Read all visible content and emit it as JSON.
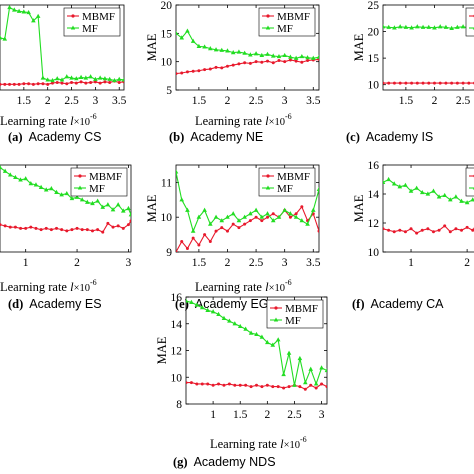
{
  "chart_data": [
    {
      "id": "a",
      "type": "line",
      "caption_letter": "(a)",
      "caption_text": "Academy CS",
      "xlabel": "Learning rate",
      "xunit_var": "l",
      "xunit_mult": "×10",
      "xunit_exp": "-6",
      "ylabel": "",
      "xlim": [
        1.0,
        3.6
      ],
      "ylim": [
        6.5,
        20
      ],
      "xticks": [
        1.5,
        2,
        2.5,
        3,
        3.5
      ],
      "xtick_labels": [
        "1.5",
        "2",
        "2.5",
        "3",
        "3.5"
      ],
      "yticks": [],
      "ytick_labels": [],
      "legend": [
        "MBMF",
        "MF"
      ],
      "legend_position": "top-right",
      "series": [
        {
          "name": "MBMF",
          "color": "#e8192c",
          "marker": "dot",
          "x": [
            1.0,
            1.1,
            1.2,
            1.3,
            1.4,
            1.5,
            1.6,
            1.7,
            1.8,
            1.9,
            2.0,
            2.1,
            2.2,
            2.3,
            2.4,
            2.5,
            2.6,
            2.7,
            2.8,
            2.9,
            3.0,
            3.1,
            3.2,
            3.3,
            3.4,
            3.5,
            3.6
          ],
          "y": [
            7.4,
            7.4,
            7.4,
            7.4,
            7.4,
            7.5,
            7.5,
            7.4,
            7.5,
            7.5,
            7.4,
            7.6,
            7.7,
            7.6,
            7.5,
            7.7,
            7.6,
            7.8,
            7.6,
            7.7,
            7.8,
            7.6,
            7.8,
            7.7,
            7.9,
            7.7,
            7.8
          ]
        },
        {
          "name": "MF",
          "color": "#22dd22",
          "marker": "tri",
          "x": [
            1.0,
            1.1,
            1.2,
            1.3,
            1.4,
            1.5,
            1.6,
            1.7,
            1.8,
            1.9,
            2.0,
            2.1,
            2.2,
            2.3,
            2.4,
            2.5,
            2.6,
            2.7,
            2.8,
            2.9,
            3.0,
            3.1,
            3.2,
            3.3,
            3.4,
            3.5,
            3.6
          ],
          "y": [
            14.8,
            14.6,
            19.6,
            19.2,
            19.0,
            18.9,
            18.8,
            17.5,
            18.2,
            8.4,
            8.1,
            8.0,
            8.3,
            8.1,
            8.6,
            8.4,
            8.3,
            8.5,
            8.4,
            8.6,
            8.2,
            8.4,
            8.3,
            8.2,
            8.0,
            8.2,
            8.1
          ]
        }
      ]
    },
    {
      "id": "b",
      "type": "line",
      "caption_letter": "(b)",
      "caption_text": "Academy NE",
      "xlabel": "Learning rate",
      "xunit_var": "l",
      "xunit_mult": "×10",
      "xunit_exp": "-6",
      "ylabel": "MAE",
      "xlim": [
        1.1,
        3.6
      ],
      "ylim": [
        5,
        20
      ],
      "xticks": [
        1.5,
        2,
        2.5,
        3,
        3.5
      ],
      "xtick_labels": [
        "1.5",
        "2",
        "2.5",
        "3",
        "3.5"
      ],
      "yticks": [
        5,
        10,
        15,
        20
      ],
      "ytick_labels": [
        "5",
        "10",
        "15",
        "20"
      ],
      "legend": [
        "MBMF",
        "MF"
      ],
      "legend_position": "top-right",
      "series": [
        {
          "name": "MBMF",
          "color": "#e8192c",
          "marker": "dot",
          "x": [
            1.1,
            1.2,
            1.3,
            1.4,
            1.5,
            1.6,
            1.7,
            1.8,
            1.9,
            2.0,
            2.1,
            2.2,
            2.3,
            2.4,
            2.5,
            2.6,
            2.7,
            2.8,
            2.9,
            3.0,
            3.1,
            3.2,
            3.3,
            3.4,
            3.5,
            3.6
          ],
          "y": [
            7.9,
            8.0,
            8.2,
            8.3,
            8.4,
            8.6,
            8.7,
            9.0,
            8.9,
            9.2,
            9.4,
            9.6,
            9.8,
            9.7,
            10.0,
            9.9,
            10.1,
            9.8,
            10.2,
            10.0,
            10.3,
            10.1,
            9.9,
            10.2,
            10.3,
            10.4
          ]
        },
        {
          "name": "MF",
          "color": "#22dd22",
          "marker": "tri",
          "x": [
            1.1,
            1.2,
            1.3,
            1.4,
            1.5,
            1.6,
            1.7,
            1.8,
            1.9,
            2.0,
            2.1,
            2.2,
            2.3,
            2.4,
            2.5,
            2.6,
            2.7,
            2.8,
            2.9,
            3.0,
            3.1,
            3.2,
            3.3,
            3.4,
            3.5,
            3.6
          ],
          "y": [
            15.0,
            14.2,
            15.4,
            13.6,
            12.7,
            12.6,
            12.3,
            12.1,
            12.0,
            11.9,
            11.6,
            11.7,
            11.5,
            11.2,
            11.4,
            11.1,
            11.3,
            11.0,
            10.9,
            11.1,
            10.8,
            10.6,
            10.9,
            10.7,
            10.6,
            10.8
          ]
        }
      ]
    },
    {
      "id": "c",
      "type": "line",
      "caption_letter": "(c)",
      "caption_text": "Academy IS",
      "xlabel": "",
      "xunit_var": "",
      "xunit_mult": "",
      "xunit_exp": "",
      "ylabel": "MAE",
      "xlim": [
        1.1,
        3.6
      ],
      "ylim": [
        9,
        25
      ],
      "xticks": [
        1.5,
        2,
        2.5
      ],
      "xtick_labels": [
        "1.5",
        "2",
        "2.5"
      ],
      "yticks": [
        10,
        15,
        20,
        25
      ],
      "ytick_labels": [
        "10",
        "15",
        "20",
        "25"
      ],
      "legend": [
        "MB",
        "M"
      ],
      "legend_position": "top-right",
      "series": [
        {
          "name": "MBMF",
          "color": "#e8192c",
          "marker": "dot",
          "x": [
            1.1,
            1.2,
            1.3,
            1.4,
            1.5,
            1.6,
            1.7,
            1.8,
            1.9,
            2.0,
            2.1,
            2.2,
            2.3,
            2.4,
            2.5,
            2.6,
            2.7,
            2.8,
            2.9,
            3.0
          ],
          "y": [
            10.3,
            10.3,
            10.3,
            10.3,
            10.3,
            10.3,
            10.3,
            10.3,
            10.3,
            10.3,
            10.3,
            10.3,
            10.3,
            10.3,
            10.3,
            10.3,
            10.3,
            10.3,
            10.3,
            10.3
          ]
        },
        {
          "name": "MF",
          "color": "#22dd22",
          "marker": "tri",
          "x": [
            1.1,
            1.2,
            1.3,
            1.4,
            1.5,
            1.6,
            1.7,
            1.8,
            1.9,
            2.0,
            2.1,
            2.2,
            2.3,
            2.4,
            2.5,
            2.6,
            2.7,
            2.8,
            2.9,
            3.0
          ],
          "y": [
            20.9,
            20.8,
            20.7,
            20.9,
            20.8,
            20.7,
            20.9,
            20.8,
            20.8,
            20.7,
            20.9,
            20.8,
            20.6,
            20.8,
            20.9,
            20.7,
            20.8,
            20.8,
            20.7,
            20.8
          ]
        }
      ]
    },
    {
      "id": "d",
      "type": "line",
      "caption_letter": "(d)",
      "caption_text": "Academy ES",
      "xlabel": "Learning rate",
      "xunit_var": "l",
      "xunit_mult": "×10",
      "xunit_exp": "-6",
      "ylabel": "",
      "xlim": [
        0.5,
        3.05
      ],
      "ylim": [
        9,
        16
      ],
      "xticks": [
        1,
        2,
        3
      ],
      "xtick_labels": [
        "1",
        "2",
        "3"
      ],
      "yticks": [],
      "ytick_labels": [],
      "legend": [
        "MBMF",
        "MF"
      ],
      "legend_position": "top-right",
      "series": [
        {
          "name": "MBMF",
          "color": "#e8192c",
          "marker": "dot",
          "x": [
            0.5,
            0.6,
            0.7,
            0.8,
            0.9,
            1.0,
            1.1,
            1.2,
            1.3,
            1.4,
            1.5,
            1.6,
            1.7,
            1.8,
            1.9,
            2.0,
            2.1,
            2.2,
            2.3,
            2.4,
            2.5,
            2.6,
            2.7,
            2.8,
            2.9,
            3.0,
            3.05
          ],
          "y": [
            11.2,
            11.1,
            11.0,
            11.0,
            10.9,
            10.9,
            11.0,
            10.9,
            10.8,
            10.9,
            10.8,
            10.9,
            10.8,
            10.7,
            10.8,
            10.9,
            10.8,
            10.8,
            10.7,
            10.8,
            10.6,
            11.3,
            11.0,
            11.1,
            10.9,
            11.2,
            11.5
          ]
        },
        {
          "name": "MF",
          "color": "#22dd22",
          "marker": "tri",
          "x": [
            0.5,
            0.6,
            0.7,
            0.8,
            0.9,
            1.0,
            1.1,
            1.2,
            1.3,
            1.4,
            1.5,
            1.6,
            1.7,
            1.8,
            1.9,
            2.0,
            2.1,
            2.2,
            2.3,
            2.4,
            2.5,
            2.6,
            2.7,
            2.8,
            2.9,
            3.0,
            3.05
          ],
          "y": [
            15.8,
            15.5,
            15.2,
            15.0,
            14.8,
            14.9,
            14.5,
            14.4,
            14.2,
            14.0,
            14.1,
            13.8,
            13.6,
            13.7,
            13.3,
            13.4,
            13.2,
            13.0,
            12.9,
            13.1,
            12.6,
            12.8,
            12.4,
            12.8,
            12.3,
            12.5,
            12.0
          ]
        }
      ]
    },
    {
      "id": "e",
      "type": "line",
      "caption_letter": "(e)",
      "caption_text": "Academy EG",
      "xlabel": "Learning rate",
      "xunit_var": "l",
      "xunit_mult": "×10",
      "xunit_exp": "-6",
      "ylabel": "MAE",
      "xlim": [
        1.1,
        3.6
      ],
      "ylim": [
        9,
        11.5
      ],
      "xticks": [
        1.5,
        2,
        2.5,
        3,
        3.5
      ],
      "xtick_labels": [
        "1.5",
        "2",
        "2.5",
        "3",
        "3.5"
      ],
      "yticks": [
        9,
        10,
        11
      ],
      "ytick_labels": [
        "9",
        "10",
        "11"
      ],
      "legend": [
        "MBMF",
        "MF"
      ],
      "legend_position": "top-right",
      "series": [
        {
          "name": "MBMF",
          "color": "#e8192c",
          "marker": "dot",
          "x": [
            1.1,
            1.2,
            1.3,
            1.4,
            1.5,
            1.6,
            1.7,
            1.8,
            1.9,
            2.0,
            2.1,
            2.2,
            2.3,
            2.4,
            2.5,
            2.6,
            2.7,
            2.8,
            2.9,
            3.0,
            3.1,
            3.2,
            3.3,
            3.4,
            3.5,
            3.6
          ],
          "y": [
            9.0,
            9.3,
            9.1,
            9.4,
            9.2,
            9.5,
            9.3,
            9.6,
            9.7,
            9.6,
            9.8,
            9.7,
            9.8,
            9.9,
            10.0,
            9.9,
            10.0,
            10.1,
            10.0,
            10.2,
            10.0,
            10.1,
            10.3,
            9.9,
            10.1,
            9.6
          ]
        },
        {
          "name": "MF",
          "color": "#22dd22",
          "marker": "tri",
          "x": [
            1.1,
            1.2,
            1.3,
            1.4,
            1.5,
            1.6,
            1.7,
            1.8,
            1.9,
            2.0,
            2.1,
            2.2,
            2.3,
            2.4,
            2.5,
            2.6,
            2.7,
            2.8,
            2.9,
            3.0,
            3.1,
            3.2,
            3.3,
            3.4,
            3.5,
            3.6
          ],
          "y": [
            11.3,
            10.5,
            10.2,
            9.6,
            10.0,
            10.2,
            9.8,
            10.0,
            9.9,
            10.0,
            10.1,
            9.9,
            10.0,
            10.1,
            10.2,
            10.0,
            10.1,
            9.9,
            10.0,
            10.2,
            10.1,
            10.0,
            9.9,
            9.8,
            10.2,
            10.8
          ]
        }
      ]
    },
    {
      "id": "f",
      "type": "line",
      "caption_letter": "(f)",
      "caption_text": "Academy CA",
      "xlabel": "",
      "xunit_var": "",
      "xunit_mult": "",
      "xunit_exp": "",
      "ylabel": "MAE",
      "xlim": [
        0.5,
        3.05
      ],
      "ylim": [
        10,
        16
      ],
      "xticks": [
        1,
        2
      ],
      "xtick_labels": [
        "1",
        "2"
      ],
      "yticks": [
        10,
        12,
        14,
        16
      ],
      "ytick_labels": [
        "10",
        "12",
        "14",
        "16"
      ],
      "legend": [
        "M",
        "M"
      ],
      "legend_position": "top-right",
      "series": [
        {
          "name": "MBMF",
          "color": "#e8192c",
          "marker": "dot",
          "x": [
            0.5,
            0.6,
            0.7,
            0.8,
            0.9,
            1.0,
            1.1,
            1.2,
            1.3,
            1.4,
            1.5,
            1.6,
            1.7,
            1.8,
            1.9,
            2.0,
            2.1,
            2.2,
            2.3,
            2.4,
            2.5,
            2.6,
            2.7,
            2.8,
            2.9,
            3.0
          ],
          "y": [
            11.6,
            11.5,
            11.4,
            11.5,
            11.4,
            11.6,
            11.3,
            11.5,
            11.6,
            11.4,
            11.5,
            11.8,
            11.4,
            11.6,
            11.5,
            11.7,
            11.5,
            12.1,
            11.6,
            11.9,
            12.3,
            11.8,
            12.0,
            12.4,
            12.1,
            12.3
          ]
        },
        {
          "name": "MF",
          "color": "#22dd22",
          "marker": "tri",
          "x": [
            0.5,
            0.6,
            0.7,
            0.8,
            0.9,
            1.0,
            1.1,
            1.2,
            1.3,
            1.4,
            1.5,
            1.6,
            1.7,
            1.8,
            1.9,
            2.0,
            2.1,
            2.2,
            2.3,
            2.4,
            2.5,
            2.6,
            2.7,
            2.8,
            2.9,
            3.0
          ],
          "y": [
            14.8,
            15.0,
            14.7,
            14.5,
            14.6,
            14.2,
            14.4,
            14.1,
            14.0,
            14.2,
            13.8,
            13.9,
            13.6,
            13.8,
            13.5,
            13.4,
            13.6,
            13.2,
            13.3,
            13.0,
            12.9,
            13.1,
            12.7,
            12.8,
            12.5,
            12.6
          ]
        }
      ]
    },
    {
      "id": "g",
      "type": "line",
      "caption_letter": "(g)",
      "caption_text": "Academy NDS",
      "xlabel": "Learning rate",
      "xunit_var": "l",
      "xunit_mult": "×10",
      "xunit_exp": "-6",
      "ylabel": "MAE",
      "xlim": [
        0.5,
        3.1
      ],
      "ylim": [
        8,
        16
      ],
      "xticks": [
        1,
        1.5,
        2,
        2.5,
        3
      ],
      "xtick_labels": [
        "1",
        "1.5",
        "2",
        "2.5",
        "3"
      ],
      "yticks": [
        8,
        10,
        12,
        14,
        16
      ],
      "ytick_labels": [
        "8",
        "10",
        "12",
        "14",
        "16"
      ],
      "legend": [
        "MBMF",
        "MF"
      ],
      "legend_position": "top-right",
      "series": [
        {
          "name": "MBMF",
          "color": "#e8192c",
          "marker": "dot",
          "x": [
            0.5,
            0.6,
            0.7,
            0.8,
            0.9,
            1.0,
            1.1,
            1.2,
            1.3,
            1.4,
            1.5,
            1.6,
            1.7,
            1.8,
            1.9,
            2.0,
            2.1,
            2.2,
            2.3,
            2.4,
            2.5,
            2.6,
            2.7,
            2.8,
            2.9,
            3.0,
            3.1
          ],
          "y": [
            9.6,
            9.6,
            9.5,
            9.5,
            9.5,
            9.4,
            9.5,
            9.4,
            9.5,
            9.4,
            9.4,
            9.4,
            9.3,
            9.4,
            9.3,
            9.4,
            9.3,
            9.3,
            9.2,
            9.3,
            9.4,
            9.3,
            9.1,
            9.4,
            9.2,
            9.5,
            9.3
          ]
        },
        {
          "name": "MF",
          "color": "#22dd22",
          "marker": "tri",
          "x": [
            0.5,
            0.6,
            0.7,
            0.8,
            0.9,
            1.0,
            1.1,
            1.2,
            1.3,
            1.4,
            1.5,
            1.6,
            1.7,
            1.8,
            1.9,
            2.0,
            2.1,
            2.2,
            2.3,
            2.4,
            2.5,
            2.6,
            2.7,
            2.8,
            2.9,
            3.0,
            3.1
          ],
          "y": [
            15.7,
            15.6,
            15.4,
            15.2,
            15.0,
            14.9,
            14.7,
            14.4,
            14.2,
            14.0,
            13.8,
            13.6,
            13.3,
            13.2,
            13.0,
            12.6,
            12.4,
            12.8,
            10.2,
            11.8,
            9.4,
            11.4,
            9.6,
            10.6,
            9.5,
            10.7,
            10.5
          ]
        }
      ]
    }
  ]
}
